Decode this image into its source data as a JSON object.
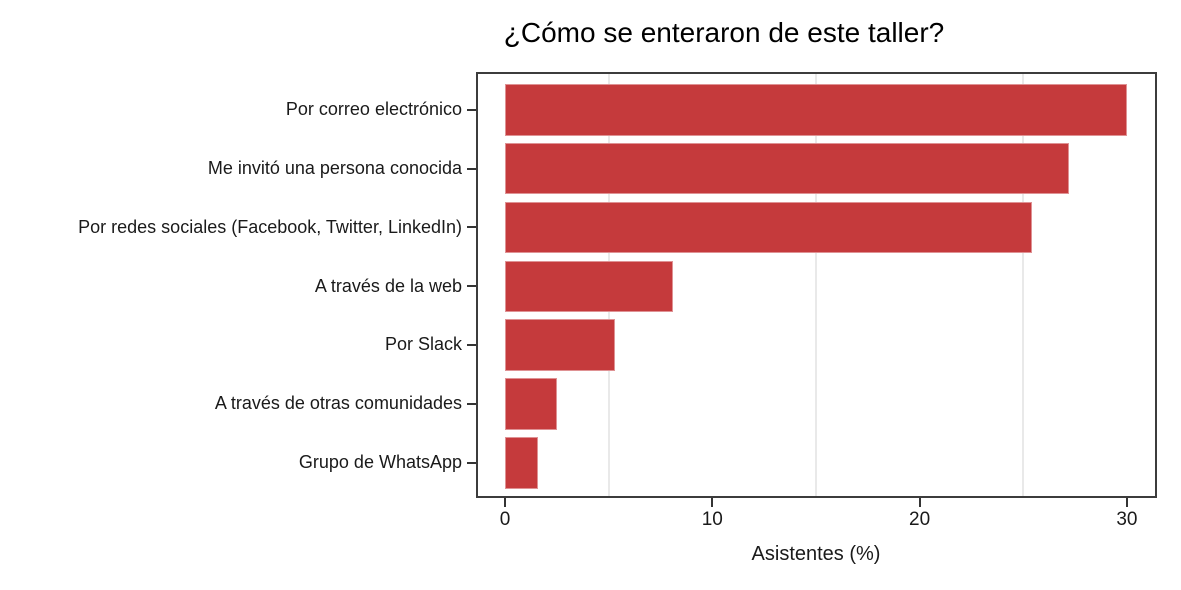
{
  "chart_data": {
    "type": "bar",
    "orientation": "horizontal",
    "title": "¿Cómo se enteraron de este taller?",
    "xlabel": "Asistentes (%)",
    "categories": [
      "Por correo electrónico",
      "Me invitó una persona conocida",
      "Por redes sociales (Facebook, Twitter, LinkedIn)",
      "A través de la web",
      "Por Slack",
      "A través de otras comunidades",
      "Grupo de WhatsApp"
    ],
    "values": [
      30.0,
      27.2,
      25.4,
      8.1,
      5.3,
      2.5,
      1.6
    ],
    "xlim": [
      0,
      30
    ],
    "x_ticks": [
      0,
      10,
      20,
      30
    ],
    "minor_gridlines": [
      5,
      15,
      25
    ],
    "grid": "minor-vertical-only",
    "legend": "none",
    "colors": {
      "bar": "#c53a3c",
      "panel_border": "#3c3c3c",
      "gridline": "#e9e9e9",
      "tick": "#343434",
      "text": "#1a1a1a"
    }
  }
}
